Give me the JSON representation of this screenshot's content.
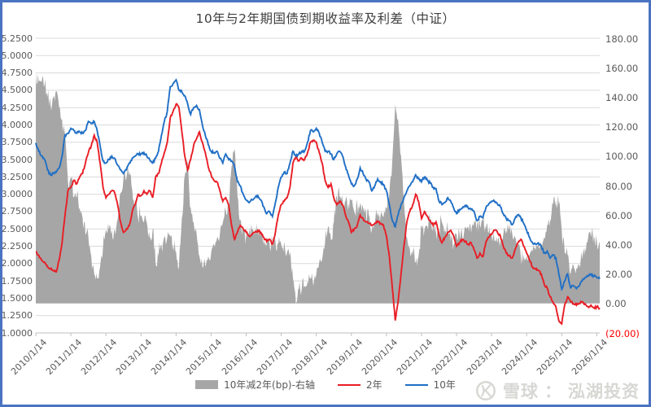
{
  "title": "10年与2年期国债到期收益率及利差（中证）",
  "watermark": {
    "brand": "雪球",
    "colon": "：",
    "account": "泓湖投资"
  },
  "colors": {
    "line_10y": "#1f6fc6",
    "line_2y": "#e91d25",
    "spread_area": "#a6a6a6",
    "gridline": "#dadada",
    "axis_line": "#bfbfbf",
    "axis_text": "#595959",
    "negative_label": "#ff0000",
    "frame_border": "#4a73c2"
  },
  "chart_data": {
    "type": "line",
    "title": "10年与2年期国债到期收益率及利差（中证）",
    "x_unit": "monthly, 2010-01 to 2026-02",
    "x_tick_labels": [
      "2010/1/14",
      "2011/1/14",
      "2012/1/14",
      "2013/1/14",
      "2014/1/14",
      "2015/1/14",
      "2016/1/14",
      "2017/1/14",
      "2018/1/14",
      "2019/1/14",
      "2020/1/14",
      "2021/1/14",
      "2022/1/14",
      "2023/1/14",
      "2024/1/14",
      "2025/1/14",
      "2026/1/14"
    ],
    "left_axis": {
      "min": 1.0,
      "max": 5.25,
      "step": 0.25,
      "tick_labels": [
        "5.2500",
        "5.0000",
        "4.7500",
        "4.5000",
        "4.2500",
        "4.0000",
        "3.7500",
        "3.5000",
        "3.2500",
        "3.0000",
        "2.7500",
        "2.5000",
        "2.2500",
        "2.0000",
        "1.7500",
        "1.5000",
        "1.2500",
        "1.0000"
      ]
    },
    "right_axis": {
      "min": -20,
      "max": 180,
      "step": 20,
      "tick_labels": [
        "180.00",
        "160.00",
        "140.00",
        "120.00",
        "100.00",
        "80.00",
        "60.00",
        "40.00",
        "20.00",
        "0.00",
        "(20.00)"
      ]
    },
    "legend": [
      {
        "label": "10年减2年(bp)-右轴",
        "type": "area",
        "color": "#a6a6a6"
      },
      {
        "label": "2年",
        "type": "line",
        "color": "#e91d25"
      },
      {
        "label": "10年",
        "type": "line",
        "color": "#1f6fc6"
      }
    ],
    "series": [
      {
        "name": "10年",
        "axis": "left",
        "color": "#1f6fc6",
        "values": [
          3.74,
          3.62,
          3.55,
          3.5,
          3.35,
          3.28,
          3.3,
          3.32,
          3.38,
          3.55,
          3.85,
          3.88,
          3.95,
          3.92,
          3.88,
          3.9,
          3.88,
          3.92,
          4.05,
          4.02,
          4.05,
          3.92,
          3.7,
          3.48,
          3.45,
          3.5,
          3.55,
          3.52,
          3.42,
          3.35,
          3.3,
          3.35,
          3.45,
          3.52,
          3.55,
          3.58,
          3.58,
          3.6,
          3.55,
          3.5,
          3.45,
          3.52,
          3.62,
          3.85,
          4.05,
          4.2,
          4.55,
          4.6,
          4.65,
          4.5,
          4.48,
          4.42,
          4.3,
          4.15,
          4.25,
          4.28,
          4.22,
          4.0,
          3.85,
          3.72,
          3.62,
          3.6,
          3.62,
          3.52,
          3.45,
          3.58,
          3.5,
          3.48,
          3.4,
          3.18,
          3.12,
          3.0,
          2.92,
          2.88,
          2.92,
          2.95,
          2.98,
          2.92,
          2.82,
          2.72,
          2.75,
          2.68,
          2.88,
          3.1,
          3.25,
          3.32,
          3.3,
          3.45,
          3.62,
          3.55,
          3.58,
          3.62,
          3.62,
          3.75,
          3.92,
          3.9,
          3.95,
          3.88,
          3.75,
          3.62,
          3.62,
          3.58,
          3.5,
          3.58,
          3.62,
          3.55,
          3.4,
          3.28,
          3.15,
          3.12,
          3.22,
          3.38,
          3.3,
          3.22,
          3.18,
          3.05,
          3.12,
          3.22,
          3.18,
          3.14,
          3.05,
          2.85,
          2.62,
          2.53,
          2.7,
          2.85,
          2.95,
          3.05,
          3.12,
          3.18,
          3.28,
          3.22,
          3.18,
          3.25,
          3.2,
          3.16,
          3.1,
          3.08,
          2.9,
          2.85,
          2.88,
          2.95,
          2.9,
          2.8,
          2.72,
          2.78,
          2.8,
          2.84,
          2.8,
          2.78,
          2.75,
          2.62,
          2.68,
          2.66,
          2.8,
          2.86,
          2.9,
          2.9,
          2.86,
          2.82,
          2.72,
          2.65,
          2.62,
          2.56,
          2.65,
          2.7,
          2.66,
          2.58,
          2.48,
          2.38,
          2.3,
          2.28,
          2.3,
          2.25,
          2.15,
          2.18,
          2.08,
          2.12,
          2.08,
          1.85,
          1.63,
          1.75,
          1.85,
          1.65,
          1.68,
          1.64,
          1.68,
          1.75,
          1.8,
          1.82,
          1.85,
          1.82,
          1.8,
          1.78
        ]
      },
      {
        "name": "2年",
        "axis": "left",
        "color": "#e91d25",
        "values": [
          2.17,
          2.12,
          2.05,
          2.02,
          1.95,
          1.92,
          1.9,
          1.88,
          2.05,
          2.3,
          2.7,
          3.05,
          3.1,
          3.2,
          3.15,
          3.25,
          3.3,
          3.45,
          3.6,
          3.7,
          3.85,
          3.75,
          3.45,
          3.1,
          2.95,
          3.0,
          3.05,
          3.02,
          2.85,
          2.6,
          2.45,
          2.5,
          2.55,
          2.75,
          2.85,
          3.0,
          2.98,
          3.05,
          3.0,
          3.05,
          2.95,
          3.25,
          3.3,
          3.45,
          3.6,
          3.75,
          4.1,
          4.2,
          4.3,
          4.25,
          3.9,
          3.55,
          3.35,
          3.5,
          3.7,
          3.8,
          3.9,
          3.75,
          3.6,
          3.4,
          3.28,
          3.2,
          3.18,
          3.05,
          2.9,
          2.95,
          2.85,
          2.55,
          2.35,
          2.45,
          2.55,
          2.5,
          2.45,
          2.4,
          2.42,
          2.45,
          2.48,
          2.45,
          2.38,
          2.32,
          2.35,
          2.28,
          2.45,
          2.7,
          2.85,
          2.9,
          2.95,
          3.1,
          3.45,
          3.55,
          3.48,
          3.52,
          3.5,
          3.6,
          3.75,
          3.78,
          3.75,
          3.6,
          3.45,
          3.2,
          3.1,
          3.15,
          2.95,
          2.85,
          2.9,
          2.85,
          2.7,
          2.6,
          2.45,
          2.5,
          2.55,
          2.7,
          2.65,
          2.6,
          2.58,
          2.55,
          2.58,
          2.6,
          2.58,
          2.55,
          2.4,
          2.1,
          1.65,
          1.18,
          1.45,
          1.85,
          2.25,
          2.6,
          2.75,
          2.85,
          3.0,
          2.9,
          2.65,
          2.75,
          2.68,
          2.62,
          2.55,
          2.6,
          2.4,
          2.3,
          2.38,
          2.45,
          2.48,
          2.4,
          2.25,
          2.3,
          2.35,
          2.32,
          2.28,
          2.3,
          2.2,
          2.08,
          2.15,
          2.1,
          2.3,
          2.38,
          2.42,
          2.48,
          2.45,
          2.4,
          2.25,
          2.15,
          2.12,
          2.08,
          2.2,
          2.3,
          2.35,
          2.25,
          2.15,
          2.05,
          1.95,
          1.92,
          1.9,
          1.85,
          1.7,
          1.65,
          1.52,
          1.45,
          1.38,
          1.18,
          1.13,
          1.4,
          1.52,
          1.45,
          1.42,
          1.4,
          1.42,
          1.45,
          1.42,
          1.38,
          1.4,
          1.36,
          1.38,
          1.36
        ]
      },
      {
        "name": "10年减2年(bp)-右轴",
        "axis": "right",
        "color": "#a6a6a6",
        "derived_from": "(10年 - 2年) × 100"
      }
    ]
  }
}
